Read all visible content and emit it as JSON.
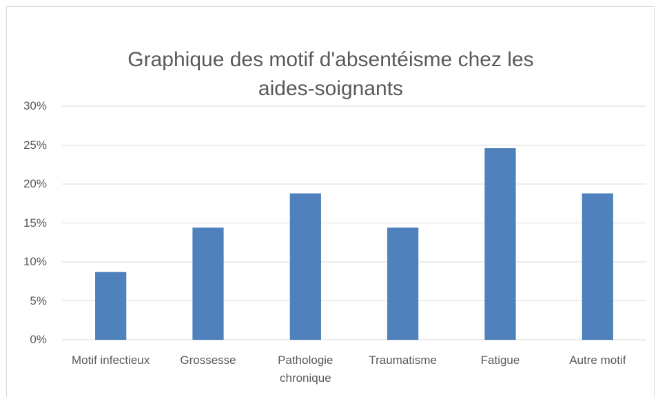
{
  "chart_data": {
    "type": "bar",
    "title": "Graphique des motif d'absentéisme chez les aides-soignants",
    "categories": [
      "Motif infectieux",
      "Grossesse",
      "Pathologie chronique",
      "Traumatisme",
      "Fatigue",
      "Autre motif"
    ],
    "values": [
      8.7,
      14.4,
      18.8,
      14.4,
      24.6,
      18.8
    ],
    "color": "#4f81bd",
    "ylim": [
      0,
      30
    ],
    "yticks": [
      {
        "value": 0,
        "label": "0%"
      },
      {
        "value": 5,
        "label": "5%"
      },
      {
        "value": 10,
        "label": "10%"
      },
      {
        "value": 15,
        "label": "15%"
      },
      {
        "value": 20,
        "label": "20%"
      },
      {
        "value": 25,
        "label": "25%"
      },
      {
        "value": 30,
        "label": "30%"
      }
    ],
    "grid": true
  }
}
